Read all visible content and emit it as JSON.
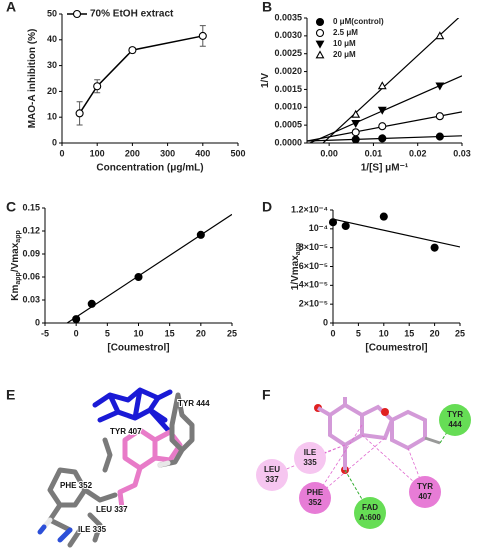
{
  "chart_data": [
    {
      "panel": "A",
      "type": "line",
      "x": [
        50,
        100,
        200,
        400
      ],
      "series": [
        {
          "name": "70% EtOH extract",
          "marker": "circle-open",
          "color": "#000000",
          "values": [
            11.5,
            22,
            36,
            41.5
          ],
          "errors": [
            4.5,
            2.5,
            1,
            4
          ]
        }
      ],
      "x_label": "Concentration (μg/mL)",
      "y_label": [
        "MAO-A inhibition (%)"
      ],
      "xlim": [
        0,
        500
      ],
      "xticks": [
        0,
        100,
        200,
        300,
        400,
        500
      ],
      "ylim": [
        0,
        50
      ],
      "yticks": [
        0,
        10,
        20,
        30,
        40,
        50
      ],
      "line": "connect",
      "legend": "top"
    },
    {
      "panel": "B",
      "type": "scatter",
      "x": [
        0.006,
        0.012,
        0.025
      ],
      "series": [
        {
          "name": "0 μM(control)",
          "marker": "circle-filled",
          "color": "#000000",
          "values": [
            0.0001,
            0.00013,
            0.00018
          ]
        },
        {
          "name": "2.5 μM",
          "marker": "circle-open",
          "color": "#000000",
          "values": [
            0.0003,
            0.00047,
            0.00075
          ]
        },
        {
          "name": "10 μM",
          "marker": "triangle-down-filled",
          "color": "#000000",
          "values": [
            0.00055,
            0.00092,
            0.0016
          ]
        },
        {
          "name": "20 μM",
          "marker": "triangle-up-open",
          "color": "#000000",
          "values": [
            0.0008,
            0.0016,
            0.003
          ]
        }
      ],
      "x_label": "1/[S] μM⁻¹",
      "y_label": [
        "1/V"
      ],
      "xlim": [
        -0.005,
        0.03
      ],
      "xticks": [
        {
          "value": 0,
          "label": "0.00"
        },
        {
          "value": 0.01,
          "label": "0.01"
        },
        {
          "value": 0.02,
          "label": "0.02"
        },
        {
          "value": 0.03,
          "label": "0.03"
        }
      ],
      "ylim": [
        0,
        0.0035
      ],
      "yticks": [
        {
          "value": 0,
          "label": "0.0000"
        },
        {
          "value": 0.0005,
          "label": "0.0005"
        },
        {
          "value": 0.001,
          "label": "0.0010"
        },
        {
          "value": 0.0015,
          "label": "0.0015"
        },
        {
          "value": 0.002,
          "label": "0.0020"
        },
        {
          "value": 0.0025,
          "label": "0.0025"
        },
        {
          "value": 0.003,
          "label": "0.0030"
        },
        {
          "value": 0.0035,
          "label": "0.0035"
        }
      ],
      "line": "fit",
      "legend": "top-left"
    },
    {
      "panel": "C",
      "type": "scatter",
      "x": [
        0,
        2.5,
        10,
        20
      ],
      "series": [
        {
          "name": null,
          "marker": "circle-filled",
          "color": "#000000",
          "values": [
            0.005,
            0.025,
            0.06,
            0.115
          ]
        }
      ],
      "x_label": "[Coumestrol]",
      "y_label": [
        "Km",
        "app",
        "/Vmax",
        "app"
      ],
      "xlim": [
        -5,
        25
      ],
      "xticks": [
        -5,
        0,
        5,
        10,
        15,
        20,
        25
      ],
      "ylim": [
        0,
        0.15
      ],
      "yticks": [
        0,
        0.03,
        0.06,
        0.09,
        0.12,
        0.15
      ],
      "line": "fit"
    },
    {
      "panel": "D",
      "type": "scatter",
      "x": [
        0,
        2.5,
        10,
        20
      ],
      "series": [
        {
          "name": null,
          "marker": "circle-filled",
          "color": "#000000",
          "values": [
            0.000107,
            0.000103,
            0.000113,
            8e-05
          ]
        }
      ],
      "x_label": "[Coumestrol]",
      "y_label": [
        "1/Vmax",
        "app"
      ],
      "xlim": [
        0,
        25
      ],
      "xticks": [
        0,
        5,
        10,
        15,
        20,
        25
      ],
      "ylim": [
        0,
        0.00012
      ],
      "yticks": [
        0,
        {
          "value": 2e-05,
          "label": "2×10⁻⁵"
        },
        {
          "value": 4e-05,
          "label": "4×10⁻⁵"
        },
        {
          "value": 6e-05,
          "label": "6×10⁻⁵"
        },
        {
          "value": 8e-05,
          "label": "8×10⁻⁵"
        },
        {
          "value": 0.0001,
          "label": "10⁻⁴"
        },
        {
          "value": 0.00012,
          "label": "1.2×10⁻⁴"
        }
      ],
      "line": "fit"
    }
  ],
  "molecules": {
    "E": {
      "panel": "E",
      "labels": [
        "TYR 444",
        "TYR 407",
        "PHE 352",
        "LEU 337",
        "ILE 335"
      ]
    },
    "F": {
      "panel": "F",
      "residues": [
        {
          "name": "TYR",
          "number": "444"
        },
        {
          "name": "ILE",
          "number": "335"
        },
        {
          "name": "LEU",
          "number": "337"
        },
        {
          "name": "PHE",
          "number": "352"
        },
        {
          "name": "FAD",
          "number": "A:600"
        },
        {
          "name": "TYR",
          "number": "407"
        }
      ]
    }
  }
}
